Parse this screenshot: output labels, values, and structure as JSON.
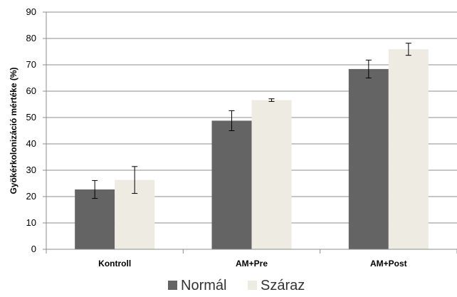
{
  "chart_data": {
    "type": "bar",
    "title": "",
    "xlabel": "",
    "ylabel": "Gyökérkolonizáció mértéke (%)",
    "categories": [
      "Kontroll",
      "AM+Pre",
      "AM+Post"
    ],
    "series": [
      {
        "name": "Normál",
        "color": "#646464",
        "values": [
          22.7,
          48.8,
          68.4
        ],
        "errors": [
          3.4,
          3.8,
          3.4
        ]
      },
      {
        "name": "Száraz",
        "color": "#eeebe2",
        "values": [
          26.3,
          56.6,
          75.9
        ],
        "errors": [
          5.1,
          0.5,
          2.3
        ]
      }
    ],
    "ylim": [
      0,
      90
    ],
    "yticks": [
      0,
      10,
      20,
      30,
      40,
      50,
      60,
      70,
      80,
      90
    ],
    "grid": true,
    "legend_position": "bottom"
  }
}
